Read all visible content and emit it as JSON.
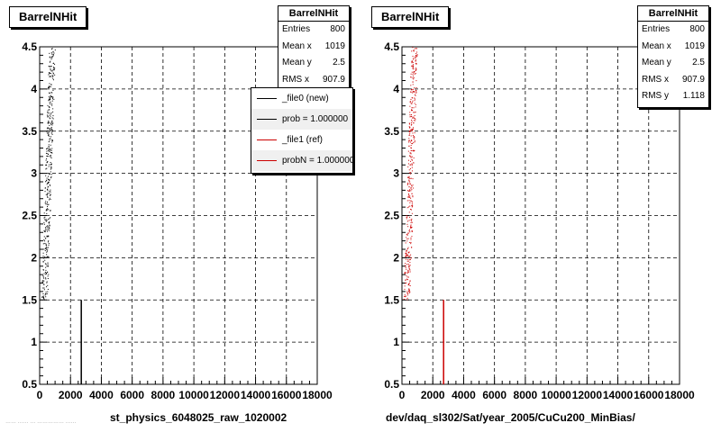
{
  "pads": [
    {
      "title": "BarrelNHit",
      "stats": {
        "name": "BarrelNHit",
        "rows": [
          {
            "label": "Entries",
            "value": "800"
          },
          {
            "label": "Mean x",
            "value": "1019"
          },
          {
            "label": "Mean y",
            "value": "2.5"
          },
          {
            "label": "RMS x",
            "value": "907.9"
          }
        ]
      },
      "legend": [
        {
          "label": "_file0 (new)",
          "color": "#000000"
        },
        {
          "label": "prob = 1.000000",
          "color": "#000000"
        },
        {
          "label": "_file1 (ref)",
          "color": "#cc0000"
        },
        {
          "label": "probN = 1.000000",
          "color": "#cc0000"
        }
      ],
      "xtitle": "st_physics_6048025_raw_1020002"
    },
    {
      "title": "BarrelNHit",
      "stats": {
        "name": "BarrelNHit",
        "rows": [
          {
            "label": "Entries",
            "value": "800"
          },
          {
            "label": "Mean x",
            "value": "1019"
          },
          {
            "label": "Mean y",
            "value": "2.5"
          },
          {
            "label": "RMS x",
            "value": "907.9"
          },
          {
            "label": "RMS y",
            "value": "1.118"
          }
        ]
      },
      "xtitle": "dev/daq_sl302/Sat/year_2005/CuCu200_MinBias/"
    }
  ],
  "footer_faint": "…… …… … …………… ……",
  "chart_data": [
    {
      "type": "scatter",
      "title": "BarrelNHit",
      "xlabel": "st_physics_6048025_raw_1020002",
      "ylabel": "",
      "xlim": [
        0,
        18000
      ],
      "ylim": [
        0.5,
        4.5
      ],
      "xticks": [
        "0",
        "2000",
        "4000",
        "6000",
        "8000",
        "10000",
        "12000",
        "14000",
        "16000",
        "18000"
      ],
      "yticks": [
        "0.5",
        "1",
        "1.5",
        "2",
        "2.5",
        "3",
        "3.5",
        "4",
        "4.5"
      ],
      "grid": true,
      "series": [
        {
          "name": "_file0 (new)",
          "color": "#000000",
          "cluster": {
            "x_range": [
              0,
              1000
            ],
            "y_range": [
              1.5,
              4.5
            ],
            "points": 420
          },
          "line": {
            "x": 2700,
            "y": [
              0.5,
              1.5
            ]
          }
        }
      ]
    },
    {
      "type": "scatter",
      "title": "BarrelNHit",
      "xlabel": "dev/daq_sl302/Sat/year_2005/CuCu200_MinBias/",
      "ylabel": "",
      "xlim": [
        0,
        18000
      ],
      "ylim": [
        0.5,
        4.5
      ],
      "xticks": [
        "0",
        "2000",
        "4000",
        "6000",
        "8000",
        "10000",
        "12000",
        "14000",
        "16000",
        "18000"
      ],
      "yticks": [
        "0.5",
        "1",
        "1.5",
        "2",
        "2.5",
        "3",
        "3.5",
        "4",
        "4.5"
      ],
      "grid": true,
      "series": [
        {
          "name": "_file1 (ref)",
          "color": "#cc0000",
          "cluster": {
            "x_range": [
              0,
              1000
            ],
            "y_range": [
              1.5,
              4.5
            ],
            "points": 420
          },
          "line": {
            "x": 2700,
            "y": [
              0.5,
              1.5
            ]
          }
        }
      ]
    }
  ]
}
